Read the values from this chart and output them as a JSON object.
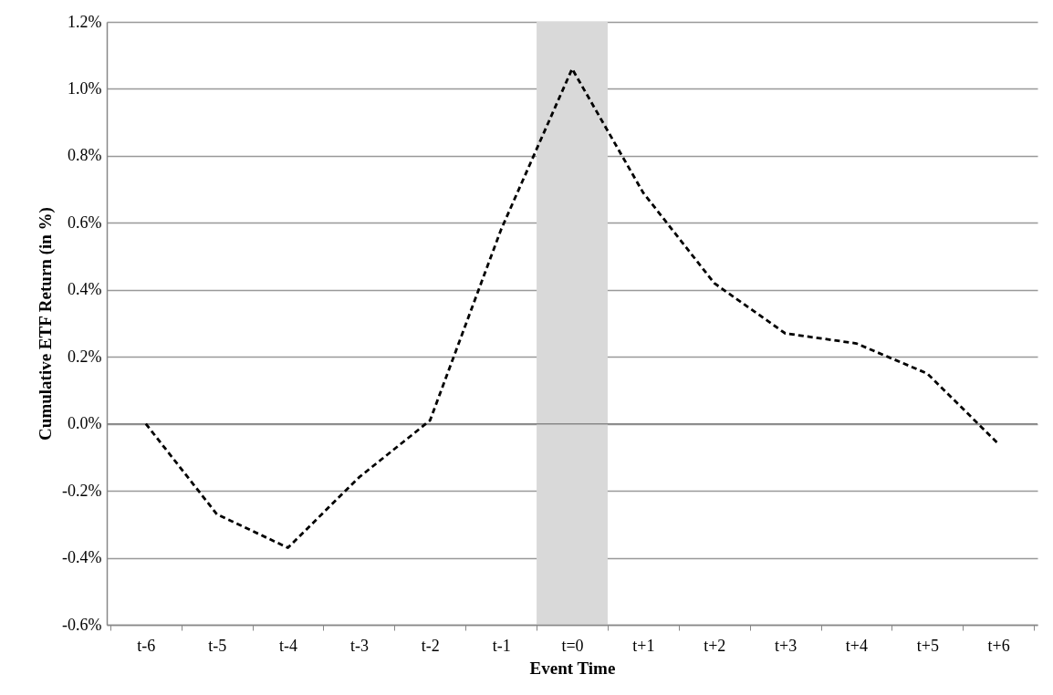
{
  "chart_data": {
    "type": "line",
    "xlabel": "Event Time",
    "ylabel": "Cumulative ETF Return (in %)",
    "categories": [
      "t-6",
      "t-5",
      "t-4",
      "t-3",
      "t-2",
      "t-1",
      "t=0",
      "t+1",
      "t+2",
      "t+3",
      "t+4",
      "t+5",
      "t+6"
    ],
    "series": [
      {
        "color": "#000000",
        "values": [
          0.0,
          -0.27,
          -0.37,
          -0.16,
          0.01,
          0.58,
          1.06,
          0.69,
          0.42,
          0.27,
          0.24,
          0.15,
          -0.06
        ]
      }
    ],
    "ylim": [
      -0.6,
      1.2
    ],
    "yticks": [
      {
        "value": -0.6,
        "label": "-0.6%"
      },
      {
        "value": -0.4,
        "label": "-0.4%"
      },
      {
        "value": -0.2,
        "label": "-0.2%"
      },
      {
        "value": 0,
        "label": "0.0%"
      },
      {
        "value": 0.2,
        "label": "0.2%"
      },
      {
        "value": 0.4,
        "label": "0.4%"
      },
      {
        "value": 0.6,
        "label": "0.6%"
      },
      {
        "value": 0.8,
        "label": "0.8%"
      },
      {
        "value": 1.0,
        "label": "1.0%"
      },
      {
        "value": 1.2,
        "label": "1.2%"
      }
    ],
    "bands": [
      {
        "axis": "x",
        "from": "t=0",
        "to": "t=0",
        "color": "#d9d9d9"
      }
    ],
    "grid": "y",
    "marker": "none",
    "line_style": "dashed"
  }
}
